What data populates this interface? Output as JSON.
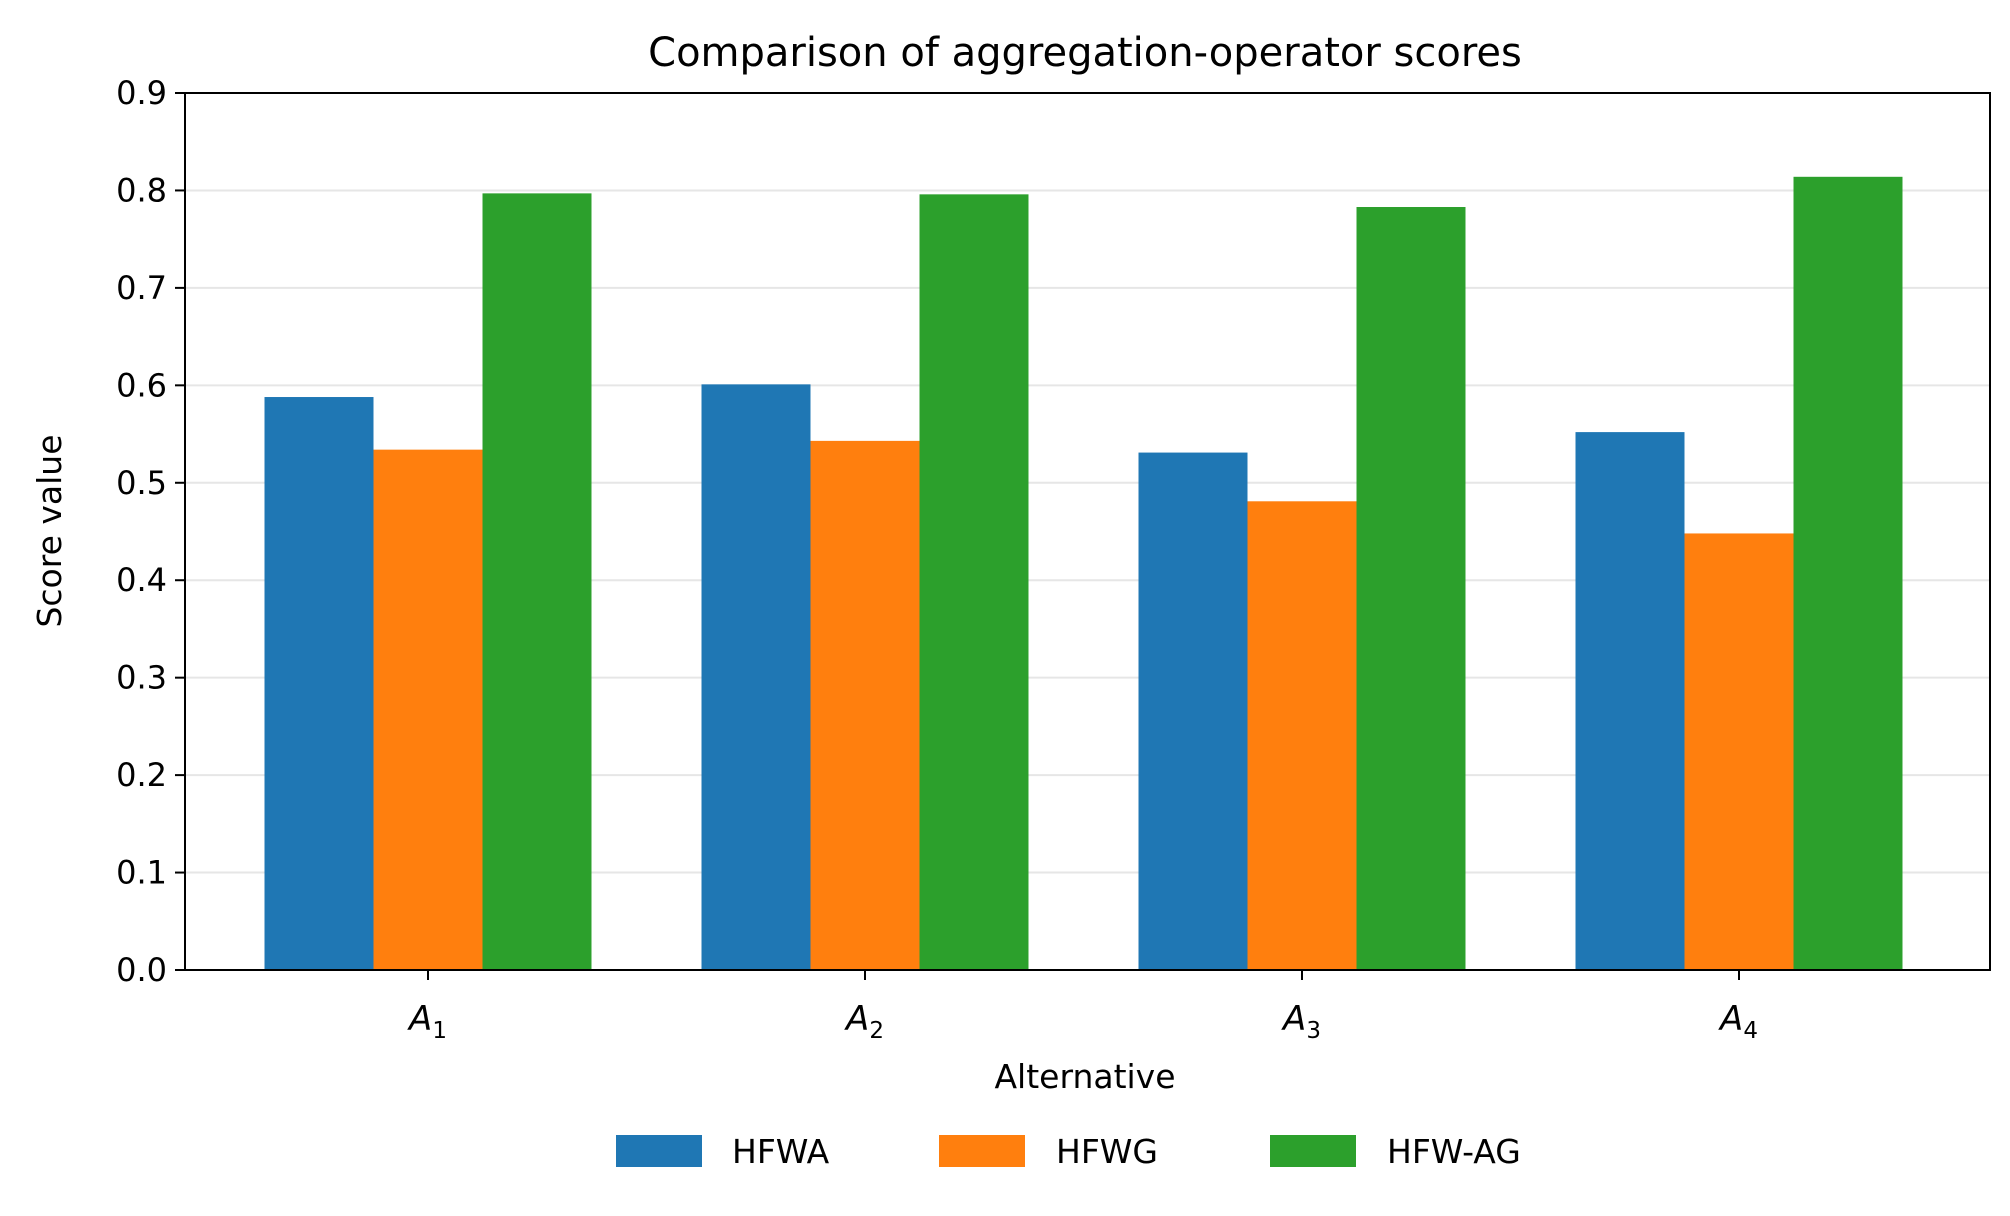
{
  "chart_data": {
    "type": "bar",
    "title": "Comparison of aggregation-operator scores",
    "xlabel": "Alternative",
    "ylabel": "Score value",
    "ylim": [
      0,
      0.9
    ],
    "yticks": [
      "0.0",
      "0.1",
      "0.2",
      "0.3",
      "0.4",
      "0.5",
      "0.6",
      "0.7",
      "0.8",
      "0.9"
    ],
    "categories": [
      {
        "base": "A",
        "sub": "1"
      },
      {
        "base": "A",
        "sub": "2"
      },
      {
        "base": "A",
        "sub": "3"
      },
      {
        "base": "A",
        "sub": "4"
      }
    ],
    "series": [
      {
        "name": "HFWA",
        "color": "#1f77b4",
        "values": [
          0.588,
          0.601,
          0.531,
          0.552
        ]
      },
      {
        "name": "HFWG",
        "color": "#ff7f0e",
        "values": [
          0.534,
          0.543,
          0.481,
          0.448
        ]
      },
      {
        "name": "HFW-AG",
        "color": "#2ca02c",
        "values": [
          0.797,
          0.796,
          0.783,
          0.814
        ]
      }
    ],
    "grid": "horizontal",
    "legend_position": "bottom-center"
  }
}
